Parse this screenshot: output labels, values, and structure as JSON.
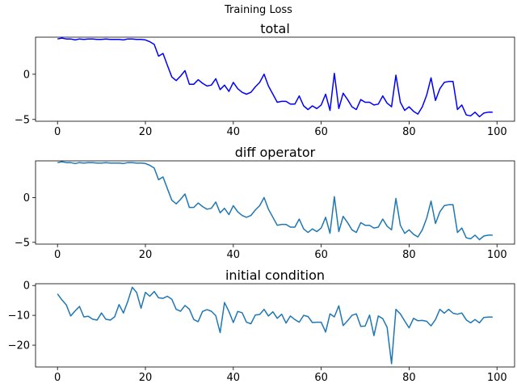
{
  "figure": {
    "suptitle": "Training Loss"
  },
  "chart_data": [
    {
      "type": "line",
      "title": "total",
      "xlabel": "",
      "ylabel": "",
      "xlim": [
        -5,
        104
      ],
      "ylim": [
        -5.2,
        4.1
      ],
      "xticks": [
        0,
        20,
        40,
        60,
        80,
        100
      ],
      "yticks": [
        -5,
        0
      ],
      "grid": false,
      "series": [
        {
          "color": "#0000ff",
          "x": [
            0,
            1,
            2,
            3,
            4,
            5,
            6,
            7,
            8,
            9,
            10,
            11,
            12,
            13,
            14,
            15,
            16,
            17,
            18,
            19,
            20,
            21,
            22,
            23,
            24,
            25,
            26,
            27,
            28,
            29,
            30,
            31,
            32,
            33,
            34,
            35,
            36,
            37,
            38,
            39,
            40,
            41,
            42,
            43,
            44,
            45,
            46,
            47,
            48,
            49,
            50,
            51,
            52,
            53,
            54,
            55,
            56,
            57,
            58,
            59,
            60,
            61,
            62,
            63,
            64,
            65,
            66,
            67,
            68,
            69,
            70,
            71,
            72,
            73,
            74,
            75,
            76,
            77,
            78,
            79,
            80,
            81,
            82,
            83,
            84,
            85,
            86,
            87,
            88,
            89,
            90,
            91,
            92,
            93,
            94,
            95,
            96,
            97,
            98,
            99
          ],
          "values": [
            3.9,
            4.0,
            3.9,
            3.9,
            3.8,
            3.9,
            3.85,
            3.9,
            3.9,
            3.85,
            3.85,
            3.9,
            3.85,
            3.85,
            3.85,
            3.8,
            3.9,
            3.9,
            3.85,
            3.85,
            3.8,
            3.6,
            3.3,
            2.0,
            2.3,
            1.0,
            -0.3,
            -0.7,
            -0.2,
            0.4,
            -1.1,
            -1.1,
            -0.6,
            -1.0,
            -1.3,
            -1.2,
            -0.5,
            -1.7,
            -1.2,
            -1.9,
            -0.9,
            -1.6,
            -2.0,
            -2.2,
            -2.0,
            -1.4,
            -0.9,
            0.0,
            -1.3,
            -2.2,
            -3.1,
            -3.0,
            -3.0,
            -3.3,
            -3.3,
            -2.4,
            -3.5,
            -3.9,
            -3.5,
            -3.8,
            -3.4,
            -2.2,
            -4.0,
            0.1,
            -3.8,
            -2.1,
            -2.8,
            -3.6,
            -3.9,
            -2.8,
            -3.1,
            -3.1,
            -3.4,
            -3.3,
            -2.4,
            -3.2,
            -3.6,
            -0.1,
            -3.1,
            -4.0,
            -3.6,
            -4.1,
            -4.4,
            -3.6,
            -2.3,
            -0.4,
            -2.9,
            -1.6,
            -0.9,
            -0.8,
            -0.8,
            -3.9,
            -3.4,
            -4.5,
            -4.6,
            -4.2,
            -4.7,
            -4.3,
            -4.2,
            -4.2
          ]
        }
      ]
    },
    {
      "type": "line",
      "title": "diff operator",
      "xlabel": "",
      "ylabel": "",
      "xlim": [
        -5,
        104
      ],
      "ylim": [
        -5.2,
        4.1
      ],
      "xticks": [
        0,
        20,
        40,
        60,
        80,
        100
      ],
      "yticks": [
        -5,
        0
      ],
      "grid": false,
      "series": [
        {
          "color": "#1f77b4",
          "x": [
            0,
            1,
            2,
            3,
            4,
            5,
            6,
            7,
            8,
            9,
            10,
            11,
            12,
            13,
            14,
            15,
            16,
            17,
            18,
            19,
            20,
            21,
            22,
            23,
            24,
            25,
            26,
            27,
            28,
            29,
            30,
            31,
            32,
            33,
            34,
            35,
            36,
            37,
            38,
            39,
            40,
            41,
            42,
            43,
            44,
            45,
            46,
            47,
            48,
            49,
            50,
            51,
            52,
            53,
            54,
            55,
            56,
            57,
            58,
            59,
            60,
            61,
            62,
            63,
            64,
            65,
            66,
            67,
            68,
            69,
            70,
            71,
            72,
            73,
            74,
            75,
            76,
            77,
            78,
            79,
            80,
            81,
            82,
            83,
            84,
            85,
            86,
            87,
            88,
            89,
            90,
            91,
            92,
            93,
            94,
            95,
            96,
            97,
            98,
            99
          ],
          "values": [
            3.9,
            4.0,
            3.9,
            3.9,
            3.8,
            3.9,
            3.85,
            3.9,
            3.9,
            3.85,
            3.85,
            3.9,
            3.85,
            3.85,
            3.85,
            3.8,
            3.9,
            3.9,
            3.85,
            3.85,
            3.8,
            3.6,
            3.3,
            2.0,
            2.3,
            1.0,
            -0.3,
            -0.7,
            -0.2,
            0.4,
            -1.1,
            -1.1,
            -0.6,
            -1.0,
            -1.3,
            -1.2,
            -0.5,
            -1.7,
            -1.2,
            -1.9,
            -0.9,
            -1.6,
            -2.0,
            -2.2,
            -2.0,
            -1.4,
            -0.9,
            0.0,
            -1.3,
            -2.2,
            -3.1,
            -3.0,
            -3.0,
            -3.3,
            -3.3,
            -2.4,
            -3.5,
            -3.9,
            -3.5,
            -3.8,
            -3.4,
            -2.2,
            -4.0,
            0.1,
            -3.8,
            -2.1,
            -2.8,
            -3.6,
            -3.9,
            -2.8,
            -3.1,
            -3.1,
            -3.4,
            -3.3,
            -2.4,
            -3.2,
            -3.6,
            -0.1,
            -3.1,
            -4.0,
            -3.6,
            -4.1,
            -4.4,
            -3.6,
            -2.3,
            -0.4,
            -2.9,
            -1.6,
            -0.9,
            -0.8,
            -0.8,
            -3.9,
            -3.4,
            -4.5,
            -4.6,
            -4.2,
            -4.7,
            -4.3,
            -4.2,
            -4.2
          ]
        }
      ]
    },
    {
      "type": "line",
      "title": "initial condition",
      "xlabel": "",
      "ylabel": "",
      "xlim": [
        -5,
        104
      ],
      "ylim": [
        -27.3,
        0.6
      ],
      "xticks": [
        0,
        20,
        40,
        60,
        80,
        100
      ],
      "yticks": [
        -20,
        -10,
        0
      ],
      "grid": false,
      "series": [
        {
          "color": "#1f77b4",
          "x": [
            0,
            1,
            2,
            3,
            4,
            5,
            6,
            7,
            8,
            9,
            10,
            11,
            12,
            13,
            14,
            15,
            16,
            17,
            18,
            19,
            20,
            21,
            22,
            23,
            24,
            25,
            26,
            27,
            28,
            29,
            30,
            31,
            32,
            33,
            34,
            35,
            36,
            37,
            38,
            39,
            40,
            41,
            42,
            43,
            44,
            45,
            46,
            47,
            48,
            49,
            50,
            51,
            52,
            53,
            54,
            55,
            56,
            57,
            58,
            59,
            60,
            61,
            62,
            63,
            64,
            65,
            66,
            67,
            68,
            69,
            70,
            71,
            72,
            73,
            74,
            75,
            76,
            77,
            78,
            79,
            80,
            81,
            82,
            83,
            84,
            85,
            86,
            87,
            88,
            89,
            90,
            91,
            92,
            93,
            94,
            95,
            96,
            97,
            98,
            99
          ],
          "values": [
            -2.8,
            -4.8,
            -6.5,
            -10.2,
            -8.5,
            -7.0,
            -10.5,
            -10.3,
            -11.3,
            -11.6,
            -9.2,
            -11.3,
            -11.6,
            -10.5,
            -6.4,
            -9.2,
            -5.3,
            -0.6,
            -2.3,
            -7.6,
            -2.3,
            -3.6,
            -2.0,
            -4.1,
            -4.3,
            -3.6,
            -4.6,
            -8.0,
            -8.6,
            -6.7,
            -7.9,
            -11.4,
            -12.1,
            -8.7,
            -8.1,
            -8.6,
            -10.1,
            -15.8,
            -5.7,
            -8.7,
            -12.4,
            -8.7,
            -9.1,
            -12.3,
            -12.8,
            -9.9,
            -9.7,
            -8.0,
            -10.2,
            -8.8,
            -11.0,
            -9.6,
            -12.6,
            -10.2,
            -11.4,
            -12.3,
            -10.0,
            -10.4,
            -12.4,
            -12.3,
            -12.3,
            -15.6,
            -9.5,
            -10.5,
            -6.8,
            -13.4,
            -11.8,
            -10.0,
            -9.5,
            -13.7,
            -13.6,
            -9.9,
            -16.8,
            -10.2,
            -11.1,
            -14.0,
            -26.2,
            -8.0,
            -9.5,
            -11.9,
            -14.2,
            -11.0,
            -11.8,
            -11.7,
            -12.0,
            -13.5,
            -11.4,
            -8.0,
            -9.3,
            -8.0,
            -9.3,
            -9.6,
            -9.2,
            -11.5,
            -12.5,
            -11.4,
            -12.5,
            -10.7,
            -10.6,
            -10.6
          ]
        }
      ]
    }
  ]
}
